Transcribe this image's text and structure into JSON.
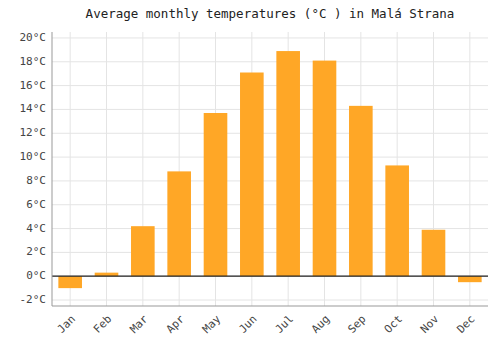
{
  "chart_data": {
    "type": "bar",
    "title": "Average monthly temperatures (°C ) in Malá Strana",
    "categories": [
      "Jan",
      "Feb",
      "Mar",
      "Apr",
      "May",
      "Jun",
      "Jul",
      "Aug",
      "Sep",
      "Oct",
      "Nov",
      "Dec"
    ],
    "values": [
      -1.0,
      0.3,
      4.2,
      8.8,
      13.7,
      17.1,
      18.9,
      18.1,
      14.3,
      9.3,
      3.9,
      -0.5
    ],
    "color": "#FFA726",
    "ylim": [
      -2.5,
      20.5
    ],
    "yticks": [
      {
        "value": -2,
        "label": "-2°C"
      },
      {
        "value": 0,
        "label": "0°C"
      },
      {
        "value": 2,
        "label": "2°C"
      },
      {
        "value": 4,
        "label": "4°C"
      },
      {
        "value": 6,
        "label": "6°C"
      },
      {
        "value": 8,
        "label": "8°C"
      },
      {
        "value": 10,
        "label": "10°C"
      },
      {
        "value": 12,
        "label": "12°C"
      },
      {
        "value": 14,
        "label": "14°C"
      },
      {
        "value": 16,
        "label": "16°C"
      },
      {
        "value": 18,
        "label": "18°C"
      },
      {
        "value": 20,
        "label": "20°C"
      }
    ],
    "grid": true
  }
}
